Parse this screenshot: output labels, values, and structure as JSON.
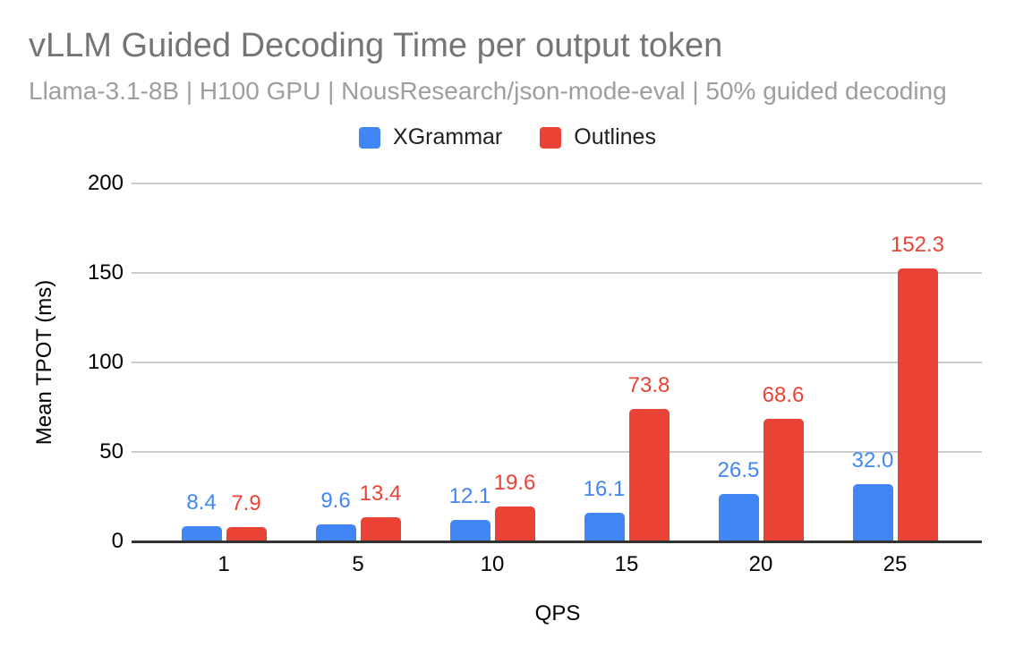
{
  "header": {
    "title": "vLLM Guided Decoding Time per output token",
    "subtitle": "Llama-3.1-8B | H100 GPU | NousResearch/json-mode-eval | 50% guided decoding"
  },
  "colors": {
    "xgrammar_blue": "#4285F4",
    "outlines_red": "#EA4335",
    "title": "#757575",
    "subtitle": "#9e9e9e",
    "grid": "#cccccc",
    "axis": "#333333",
    "tick_text": "#000000",
    "legend_text": "#212121",
    "background": "#ffffff"
  },
  "chart_data": {
    "type": "bar",
    "title": "vLLM Guided Decoding Time per output token",
    "subtitle": "Llama-3.1-8B | H100 GPU | NousResearch/json-mode-eval | 50% guided decoding",
    "categories": [
      "1",
      "5",
      "10",
      "15",
      "20",
      "25"
    ],
    "series": [
      {
        "name": "XGrammar",
        "color": "#4285F4",
        "values": [
          8.4,
          9.6,
          12.1,
          16.1,
          26.5,
          32.0
        ],
        "labels": [
          "8.4",
          "9.6",
          "12.1",
          "16.1",
          "26.5",
          "32.0"
        ]
      },
      {
        "name": "Outlines",
        "color": "#EA4335",
        "values": [
          7.9,
          13.4,
          19.6,
          73.8,
          68.6,
          152.3
        ],
        "labels": [
          "7.9",
          "13.4",
          "19.6",
          "73.8",
          "68.6",
          "152.3"
        ]
      }
    ],
    "xlabel": "QPS",
    "ylabel": "Mean TPOT (ms)",
    "ylim": [
      0,
      200
    ],
    "yticks": [
      0,
      50,
      100,
      150,
      200
    ],
    "grid": true,
    "legend_position": "top",
    "data_labels": true
  }
}
